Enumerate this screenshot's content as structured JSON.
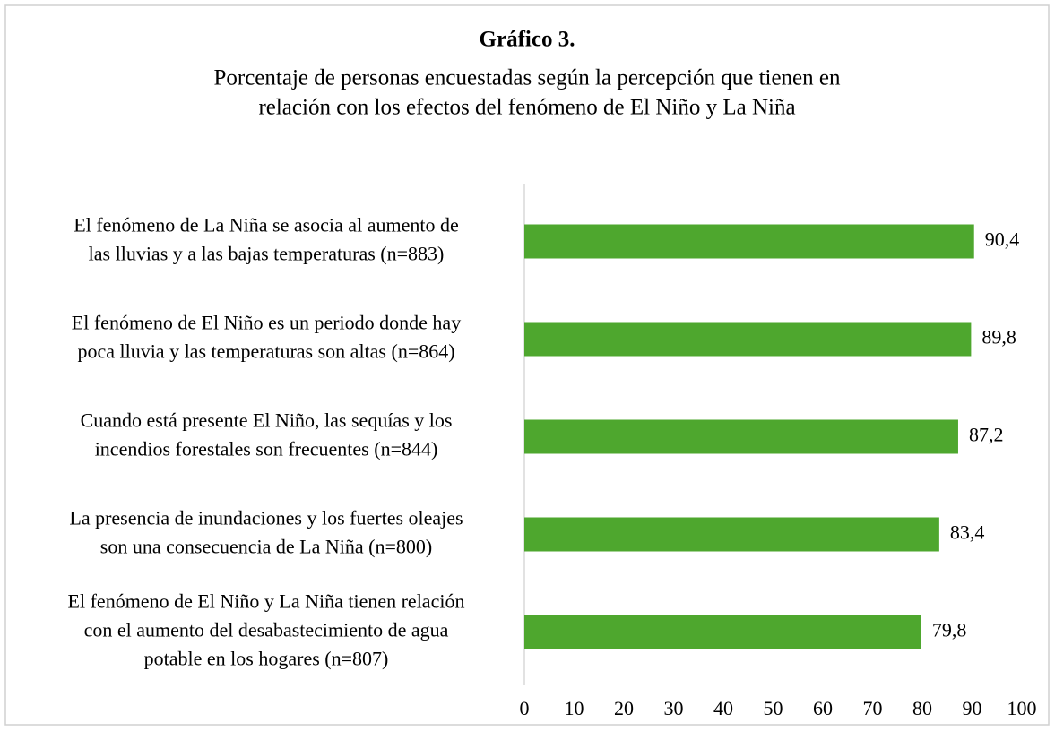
{
  "chart_data": {
    "type": "barh",
    "title": "Gráfico 3.",
    "subtitle": [
      "Porcentaje de personas encuestadas según la percepción que tienen en",
      "relación con los efectos del fenómeno de El Niño y La Niña"
    ],
    "categories": [
      [
        "El fenómeno de La Niña se asocia al aumento de",
        "las lluvias y a las bajas temperaturas (n=883)"
      ],
      [
        "El fenómeno de El Niño es un periodo donde hay",
        "poca lluvia y las temperaturas son altas (n=864)"
      ],
      [
        "Cuando está presente El Niño, las sequías y los",
        "incendios forestales son frecuentes (n=844)"
      ],
      [
        "La presencia de inundaciones y los fuertes oleajes",
        "son una consecuencia de La Niña (n=800)"
      ],
      [
        "El fenómeno de El Niño y La Niña tienen relación",
        "con el aumento del desabastecimiento de agua",
        "potable en los hogares (n=807)"
      ]
    ],
    "values": [
      90.4,
      89.8,
      87.2,
      83.4,
      79.8
    ],
    "value_labels": [
      "90,4",
      "89,8",
      "87,2",
      "83,4",
      "79,8"
    ],
    "color": "#4ea72e",
    "xlim": [
      0,
      100
    ],
    "xticks": [
      0,
      10,
      20,
      30,
      40,
      50,
      60,
      70,
      80,
      90,
      100
    ],
    "grid": false
  }
}
